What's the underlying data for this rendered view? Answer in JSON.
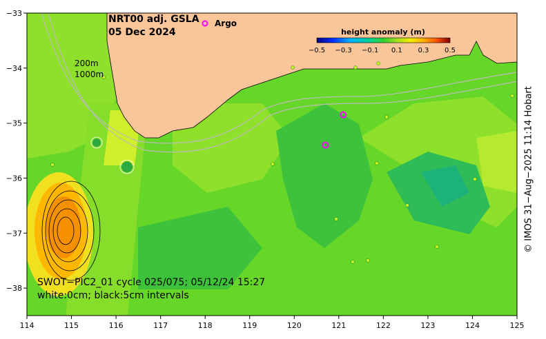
{
  "title": {
    "line1": "NRT00 adj. GSLA",
    "line2": "05 Dec 2024"
  },
  "argo_label": "Argo",
  "isobath_labels": [
    "200m",
    "1000m"
  ],
  "colorbar": {
    "title": "height anomaly (m)",
    "ticks": [
      "−0.5",
      "−0.3",
      "−0.1",
      "0.1",
      "0.3",
      "0.5"
    ],
    "min": -0.5,
    "max": 0.5
  },
  "swot_caption": {
    "line1": "SWOT−PIC2_01 cycle 025/075; 05/12/24 15:27",
    "line2": "white:0cm; black:5cm intervals"
  },
  "credit": "© IMOS 31−Aug−2025 11:14 Hobart",
  "axes": {
    "x_ticks": [
      114,
      115,
      116,
      117,
      118,
      119,
      120,
      121,
      122,
      123,
      124,
      125
    ],
    "x_tick_labels": [
      "114",
      "115",
      "116",
      "117",
      "118",
      "119",
      "120",
      "121",
      "122",
      "123",
      "124",
      "125"
    ],
    "y_ticks": [
      -33,
      -34,
      -35,
      -36,
      -37,
      -38
    ],
    "y_tick_labels": [
      "−33",
      "−34",
      "−35",
      "−36",
      "−37",
      "−38"
    ],
    "lon_range": [
      114,
      125
    ],
    "lat_range": [
      -38.5,
      -33
    ]
  },
  "colors": {
    "land": "#fbc59a",
    "ocean_base": "#66d629",
    "argo": "#ff00ff",
    "swot_dots": "#c8f01e",
    "isobath": "#bbbbbb"
  },
  "argo_floats": [
    {
      "lon": 121.1,
      "lat": -34.85
    },
    {
      "lon": 120.7,
      "lat": -35.4
    }
  ]
}
